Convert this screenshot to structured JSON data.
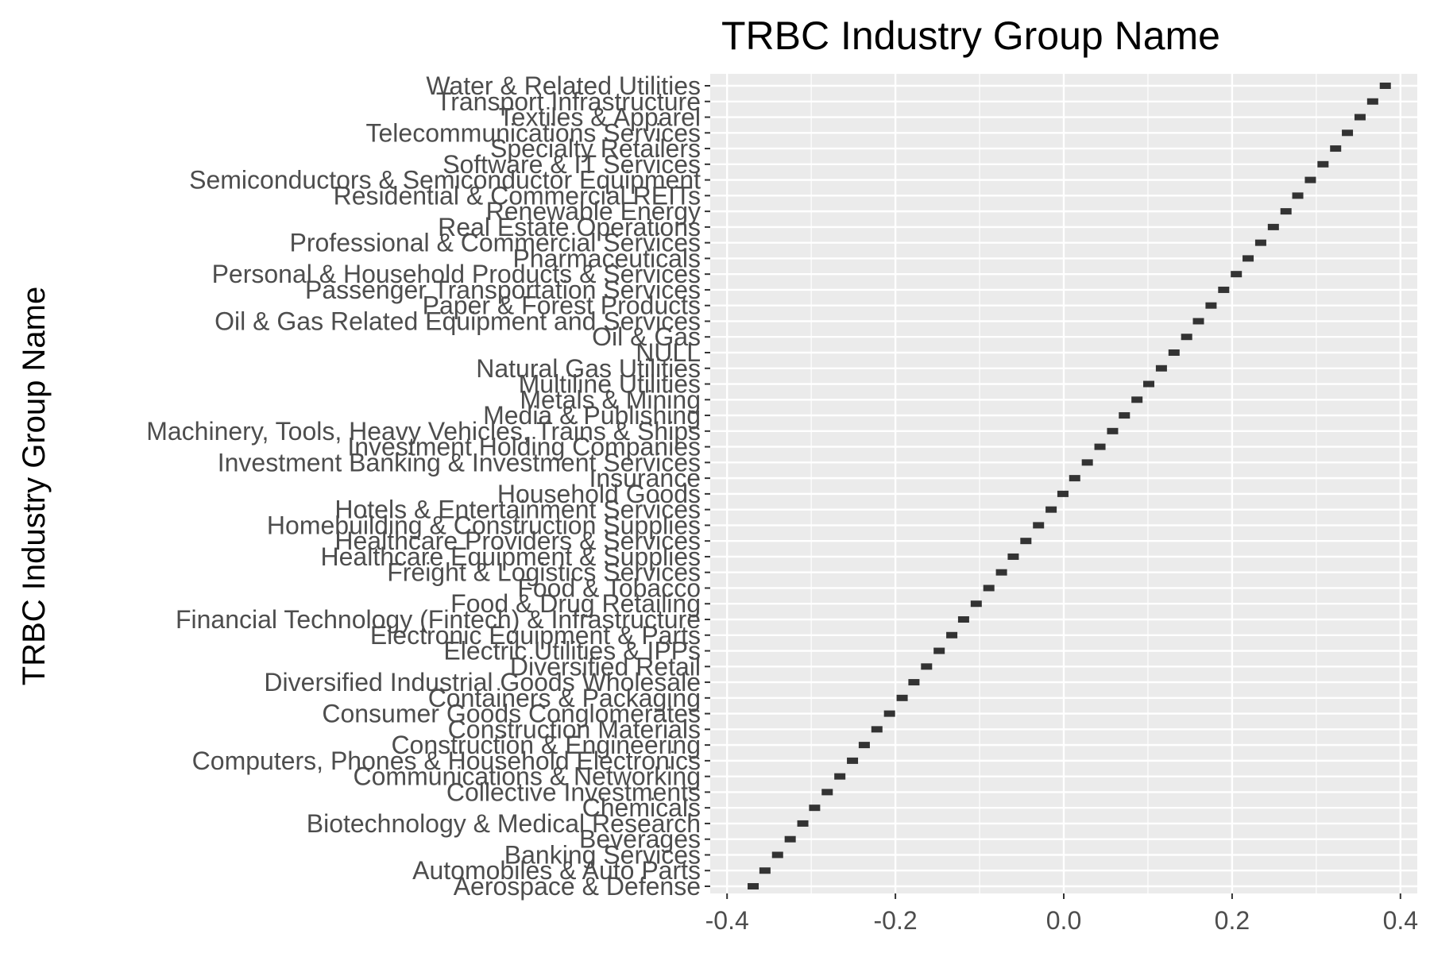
{
  "chart_data": {
    "type": "scatter",
    "title": "TRBC Industry Group Name",
    "xlabel": "",
    "ylabel": "TRBC Industry Group Name",
    "xlim": [
      -0.42,
      0.42
    ],
    "x_ticks": [
      -0.4,
      -0.2,
      0.0,
      0.2,
      0.4
    ],
    "x_tick_labels": [
      "-0.4",
      "-0.2",
      "0.0",
      "0.2",
      "0.4"
    ],
    "grid": true,
    "panel_background": "#ebebeb",
    "mark_color": "#333333",
    "categories": [
      "Aerospace & Defense",
      "Automobiles & Auto Parts",
      "Banking Services",
      "Beverages",
      "Biotechnology & Medical Research",
      "Chemicals",
      "Collective Investments",
      "Communications & Networking",
      "Computers, Phones & Household Electronics",
      "Construction & Engineering",
      "Construction Materials",
      "Consumer Goods Conglomerates",
      "Containers & Packaging",
      "Diversified Industrial Goods Wholesale",
      "Diversified Retail",
      "Electric Utilities & IPPs",
      "Electronic Equipment & Parts",
      "Financial Technology (Fintech) & Infrastructure",
      "Food & Drug Retailing",
      "Food & Tobacco",
      "Freight & Logistics Services",
      "Healthcare Equipment & Supplies",
      "Healthcare Providers & Services",
      "Homebuilding & Construction Supplies",
      "Hotels & Entertainment Services",
      "Household Goods",
      "Insurance",
      "Investment Banking & Investment Services",
      "Investment Holding Companies",
      "Machinery, Tools, Heavy Vehicles, Trains & Ships",
      "Media & Publishing",
      "Metals & Mining",
      "Multiline Utilities",
      "Natural Gas Utilities",
      "NULL",
      "Oil & Gas",
      "Oil & Gas Related Equipment and Services",
      "Paper & Forest Products",
      "Passenger Transportation Services",
      "Personal & Household Products & Services",
      "Pharmaceuticals",
      "Professional & Commercial Services",
      "Real Estate Operations",
      "Renewable Energy",
      "Residential & Commercial REITs",
      "Semiconductors & Semiconductor Equipment",
      "Software & IT Services",
      "Specialty Retailers",
      "Telecommunications Services",
      "Textiles & Apparel",
      "Transport Infrastructure",
      "Water & Related Utilities"
    ],
    "values": [
      -0.369,
      -0.355,
      -0.34,
      -0.325,
      -0.31,
      -0.296,
      -0.281,
      -0.266,
      -0.251,
      -0.237,
      -0.222,
      -0.207,
      -0.192,
      -0.178,
      -0.163,
      -0.148,
      -0.133,
      -0.119,
      -0.104,
      -0.089,
      -0.074,
      -0.06,
      -0.045,
      -0.03,
      -0.015,
      -0.001,
      0.013,
      0.028,
      0.043,
      0.058,
      0.072,
      0.087,
      0.101,
      0.116,
      0.131,
      0.146,
      0.16,
      0.175,
      0.19,
      0.205,
      0.219,
      0.234,
      0.249,
      0.264,
      0.278,
      0.293,
      0.308,
      0.323,
      0.337,
      0.352,
      0.367,
      0.382
    ]
  }
}
